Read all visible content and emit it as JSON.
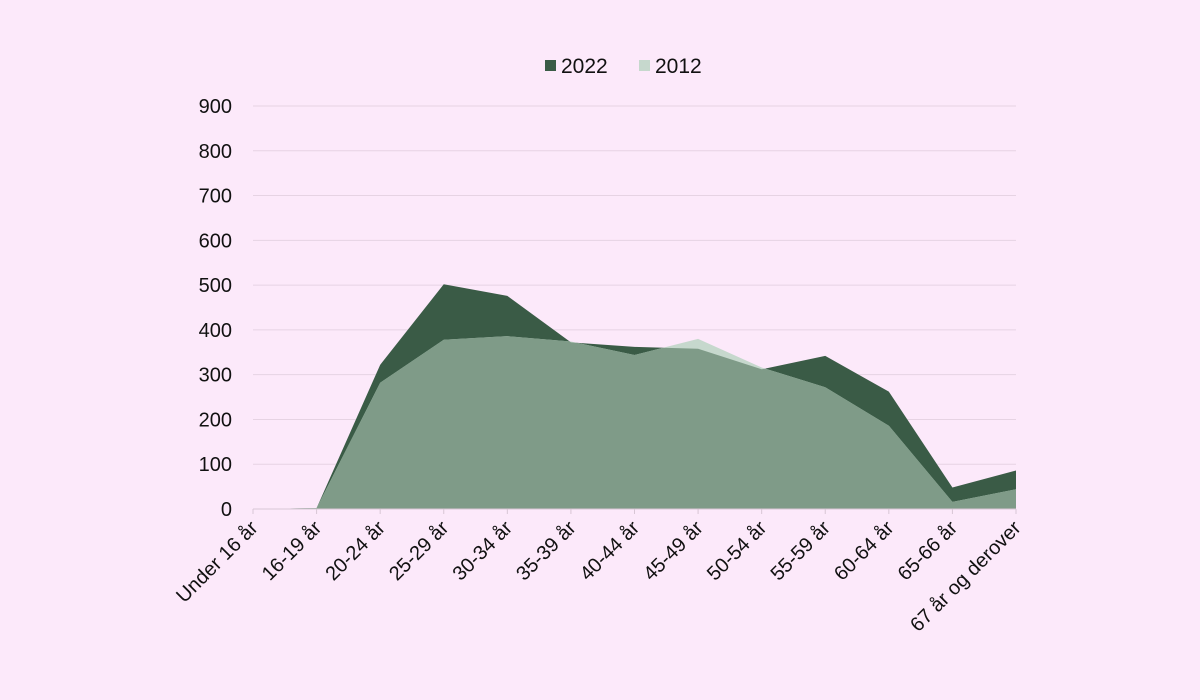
{
  "chart_data": {
    "type": "area",
    "categories": [
      "Under 16 år",
      "16-19 år",
      "20-24 år",
      "25-29 år",
      "30-34 år",
      "35-39 år",
      "40-44 år",
      "45-49 år",
      "50-54 år",
      "55-59 år",
      "60-64 år",
      "65-66 år",
      "67 år og derover"
    ],
    "series": [
      {
        "name": "2022",
        "values": [
          0,
          2,
          322,
          502,
          476,
          372,
          362,
          358,
          312,
          342,
          262,
          48,
          86
        ],
        "color": "#3a5b46"
      },
      {
        "name": "2012",
        "values": [
          0,
          2,
          282,
          378,
          386,
          374,
          344,
          380,
          316,
          272,
          186,
          16,
          44
        ],
        "color": "#c6d8cd"
      }
    ],
    "ylim": [
      0,
      900
    ],
    "yticks": [
      0,
      100,
      200,
      300,
      400,
      500,
      600,
      700,
      800,
      900
    ],
    "overlap_color": "#7f9b88",
    "grid": true,
    "legend": "top-center"
  }
}
